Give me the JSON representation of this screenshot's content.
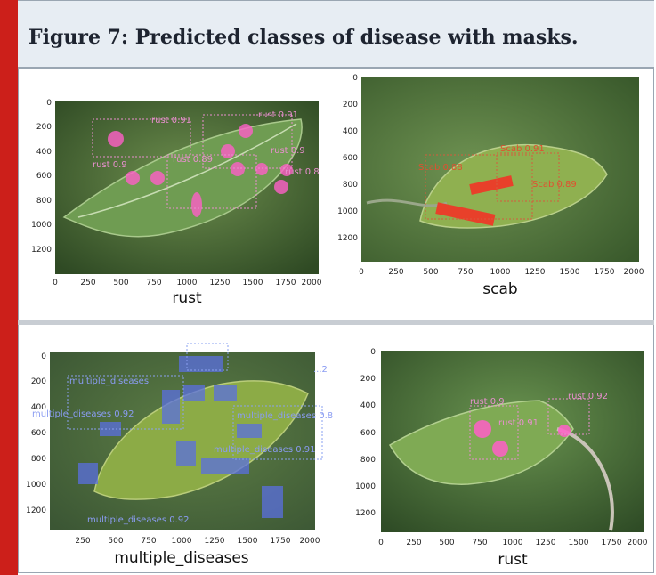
{
  "figure": {
    "title": "Figure 7: Predicted classes of disease with masks."
  },
  "panels": [
    {
      "id": "p1",
      "class_label": "rust",
      "x_ticks": [
        "0",
        "250",
        "500",
        "750",
        "1000",
        "1250",
        "1500",
        "1750",
        "2000"
      ],
      "y_ticks": [
        "0",
        "200",
        "400",
        "600",
        "800",
        "1000",
        "1200"
      ],
      "detections": [
        "rust 0.91",
        "rust 0.91",
        "rust 0.9",
        "rust 0.89",
        "rust 0.9",
        "rust 0.8"
      ],
      "mask_color": "#ff5fc8"
    },
    {
      "id": "p2",
      "class_label": "scab",
      "x_ticks": [
        "0",
        "250",
        "500",
        "750",
        "1000",
        "1250",
        "1500",
        "1750",
        "2000"
      ],
      "y_ticks": [
        "0",
        "200",
        "400",
        "600",
        "800",
        "1000",
        "1200"
      ],
      "detections": [
        "Scab 0.91",
        "Scab 0.88",
        "Scab 0.89"
      ],
      "mask_color": "#e8402a"
    },
    {
      "id": "p3",
      "class_label": "multiple_diseases",
      "x_ticks": [
        "250",
        "500",
        "750",
        "1000",
        "1250",
        "1500",
        "1750",
        "2000"
      ],
      "y_ticks": [
        "0",
        "200",
        "400",
        "600",
        "800",
        "1000",
        "1200"
      ],
      "detections": [
        "multiple_diseases 0.92",
        "multiple_diseases",
        "multiple_diseases 0.80",
        "multiple_diseases 0.91",
        "multiple_diseases 0.92",
        "...2"
      ],
      "mask_color": "#5a6fe0"
    },
    {
      "id": "p4",
      "class_label": "rust",
      "x_ticks": [
        "0",
        "250",
        "500",
        "750",
        "1000",
        "1250",
        "1500",
        "1750",
        "2000"
      ],
      "y_ticks": [
        "0",
        "200",
        "400",
        "600",
        "800",
        "1000",
        "1200"
      ],
      "detections": [
        "rust 0.9",
        "rust 0.91",
        "rust 0.92"
      ],
      "mask_color": "#ff5fc8"
    }
  ]
}
